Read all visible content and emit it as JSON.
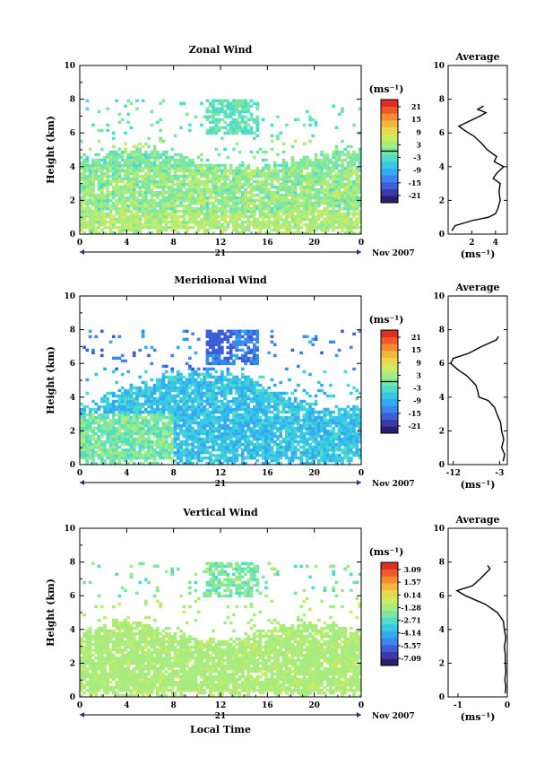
{
  "chart_data": [
    {
      "type": "heatmap",
      "title": "Zonal Wind",
      "ylabel": "Height (km)",
      "xlabel": "",
      "xlim": [
        0,
        24
      ],
      "ylim": [
        0,
        10
      ],
      "xticks": [
        "0",
        "4",
        "8",
        "12",
        "16",
        "20",
        "0"
      ],
      "yticks": [
        "0",
        "2",
        "4",
        "6",
        "8",
        "10"
      ],
      "date_day": "21",
      "date_month": "Nov 2007",
      "colorbar": {
        "unit_label": "(ms⁻¹)",
        "range": [
          -21,
          21
        ],
        "ticks": [
          "21",
          "15",
          "9",
          "3",
          "-3",
          "-9",
          "-15",
          "-21"
        ],
        "zero_line": true
      },
      "profile": {
        "title": "Average",
        "xlabel": "(ms⁻¹)",
        "xlim": [
          0,
          5
        ],
        "xticks": [
          "2",
          "4"
        ],
        "yticks": [
          "0",
          "2",
          "4",
          "6",
          "8",
          "10"
        ],
        "heights": [
          0.2,
          0.5,
          0.8,
          1.0,
          1.2,
          1.5,
          2.0,
          2.5,
          3.0,
          3.3,
          3.6,
          4.0,
          4.3,
          4.6,
          5.0,
          5.4,
          5.8,
          6.1,
          6.4,
          6.7,
          7.0,
          7.2,
          7.4,
          7.6
        ],
        "values": [
          0.3,
          0.6,
          2.0,
          3.4,
          4.0,
          4.2,
          4.4,
          4.3,
          4.4,
          3.8,
          4.1,
          4.7,
          3.9,
          4.1,
          3.3,
          2.8,
          2.2,
          1.5,
          0.9,
          1.8,
          2.7,
          3.2,
          2.5,
          3.0
        ]
      }
    },
    {
      "type": "heatmap",
      "title": "Meridional Wind",
      "ylabel": "Height (km)",
      "xlabel": "",
      "xlim": [
        0,
        24
      ],
      "ylim": [
        0,
        10
      ],
      "xticks": [
        "0",
        "4",
        "8",
        "12",
        "16",
        "20",
        "0"
      ],
      "yticks": [
        "0",
        "2",
        "4",
        "6",
        "8",
        "10"
      ],
      "date_day": "21",
      "date_month": "Nov 2007",
      "colorbar": {
        "unit_label": "(ms⁻¹)",
        "range": [
          -21,
          21
        ],
        "ticks": [
          "21",
          "15",
          "9",
          "3",
          "-3",
          "-9",
          "-15",
          "-21"
        ],
        "zero_line": true
      },
      "profile": {
        "title": "Average",
        "xlabel": "(ms⁻¹)",
        "xlim": [
          -13,
          -1.5
        ],
        "xticks": [
          "-12",
          "-3"
        ],
        "yticks": [
          "0",
          "2",
          "4",
          "6",
          "8",
          "10"
        ],
        "heights": [
          0.2,
          0.6,
          1.0,
          1.5,
          2.0,
          2.5,
          3.0,
          3.4,
          3.8,
          4.0,
          4.3,
          4.7,
          5.0,
          5.3,
          5.6,
          6.0,
          6.3,
          6.6,
          7.0,
          7.4,
          7.6
        ],
        "values": [
          -2.3,
          -2.0,
          -2.6,
          -2.2,
          -2.6,
          -2.8,
          -3.5,
          -4.0,
          -5.2,
          -7.0,
          -7.2,
          -7.6,
          -8.5,
          -9.5,
          -11.0,
          -12.5,
          -12.0,
          -9.0,
          -6.5,
          -3.6,
          -3.2
        ]
      }
    },
    {
      "type": "heatmap",
      "title": "Vertical Wind",
      "ylabel": "Height (km)",
      "xlabel": "Local Time",
      "xlim": [
        0,
        24
      ],
      "ylim": [
        0,
        10
      ],
      "xticks": [
        "0",
        "4",
        "8",
        "12",
        "16",
        "20",
        "0"
      ],
      "yticks": [
        "0",
        "2",
        "4",
        "6",
        "8",
        "10"
      ],
      "date_day": "21",
      "date_month": "Nov 2007",
      "colorbar": {
        "unit_label": "(ms⁻¹)",
        "range": [
          -7.09,
          3.09
        ],
        "ticks": [
          "3.09",
          "1.57",
          "0.14",
          "-1.28",
          "-2.71",
          "-4.14",
          "-5.57",
          "-7.09"
        ],
        "zero_line": false
      },
      "profile": {
        "title": "Average",
        "xlabel": "(ms⁻¹)",
        "xlim": [
          -1.2,
          0
        ],
        "xticks": [
          "-1",
          "0"
        ],
        "yticks": [
          "0",
          "2",
          "4",
          "6",
          "8",
          "10"
        ],
        "heights": [
          0.2,
          0.6,
          1.0,
          1.5,
          2.0,
          2.5,
          3.0,
          3.5,
          4.0,
          4.5,
          5.0,
          5.5,
          6.0,
          6.3,
          6.6,
          7.0,
          7.3,
          7.6,
          7.8
        ],
        "values": [
          -0.04,
          -0.03,
          -0.05,
          -0.03,
          -0.04,
          -0.04,
          -0.06,
          -0.03,
          -0.06,
          -0.08,
          -0.2,
          -0.45,
          -0.85,
          -1.02,
          -0.7,
          -0.55,
          -0.45,
          -0.35,
          -0.4
        ]
      }
    }
  ]
}
